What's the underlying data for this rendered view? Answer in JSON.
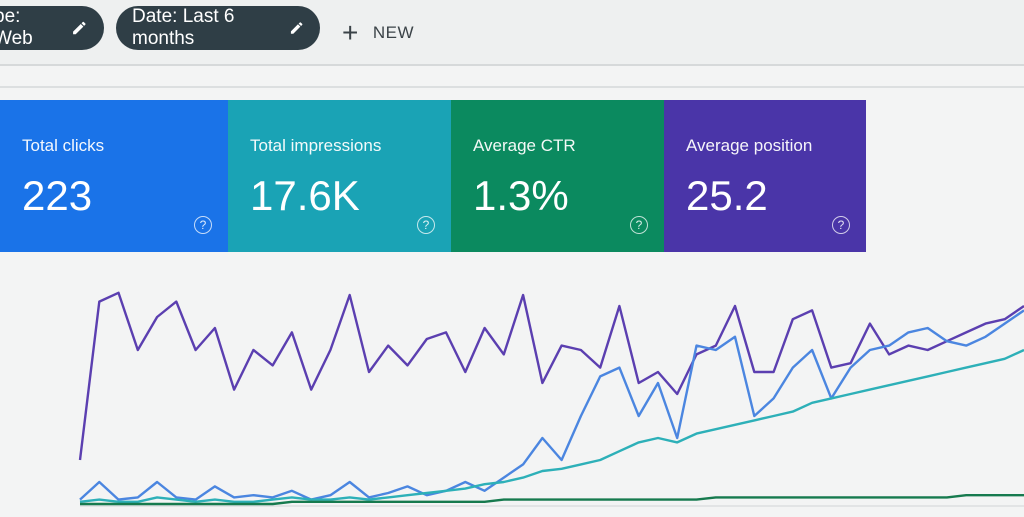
{
  "filters": {
    "type_chip": "pe: Web",
    "date_chip": "Date: Last 6 months",
    "new_label": "NEW"
  },
  "metrics": [
    {
      "label": "Total clicks",
      "value": "223",
      "color": "#1a73e8"
    },
    {
      "label": "Total impressions",
      "value": "17.6K",
      "color": "#1aa3b5"
    },
    {
      "label": "Average CTR",
      "value": "1.3%",
      "color": "#0b8a5f"
    },
    {
      "label": "Average position",
      "value": "25.2",
      "color": "#4a35a8"
    }
  ],
  "help_glyph": "?",
  "chart_data": {
    "type": "line",
    "x": [
      0,
      1,
      2,
      3,
      4,
      5,
      6,
      7,
      8,
      9,
      10,
      11,
      12,
      13,
      14,
      15,
      16,
      17,
      18,
      19,
      20,
      21,
      22,
      23,
      24,
      25,
      26,
      27,
      28,
      29,
      30,
      31,
      32,
      33,
      34,
      35,
      36,
      37,
      38,
      39,
      40,
      41,
      42,
      43,
      44,
      45,
      46,
      47,
      48,
      49
    ],
    "series": [
      {
        "color": "#5b3fb0",
        "values": [
          20,
          92,
          96,
          70,
          85,
          92,
          70,
          80,
          52,
          70,
          63,
          78,
          52,
          70,
          95,
          60,
          72,
          63,
          75,
          78,
          60,
          80,
          68,
          95,
          55,
          72,
          70,
          62,
          90,
          55,
          60,
          50,
          68,
          72,
          90,
          60,
          60,
          84,
          88,
          62,
          64,
          82,
          68,
          72,
          70,
          74,
          78,
          82,
          84,
          90
        ]
      },
      {
        "color": "#4b86e0",
        "values": [
          2,
          10,
          2,
          3,
          10,
          3,
          2,
          8,
          3,
          4,
          3,
          6,
          2,
          4,
          10,
          3,
          5,
          8,
          4,
          6,
          10,
          6,
          12,
          18,
          30,
          20,
          40,
          58,
          62,
          40,
          55,
          30,
          72,
          70,
          76,
          40,
          48,
          62,
          70,
          48,
          62,
          70,
          72,
          78,
          80,
          74,
          72,
          76,
          82,
          88
        ]
      },
      {
        "color": "#2db0b8",
        "values": [
          1,
          2,
          1,
          1,
          3,
          2,
          1,
          2,
          1,
          1,
          2,
          3,
          2,
          2,
          3,
          2,
          3,
          4,
          5,
          6,
          7,
          9,
          10,
          12,
          15,
          16,
          18,
          20,
          24,
          28,
          30,
          28,
          32,
          34,
          36,
          38,
          40,
          42,
          46,
          48,
          50,
          52,
          54,
          56,
          58,
          60,
          62,
          64,
          66,
          70
        ]
      },
      {
        "color": "#167a4e",
        "values": [
          0,
          0,
          0,
          0,
          0,
          0,
          0,
          0,
          0,
          0,
          0,
          1,
          1,
          1,
          1,
          1,
          1,
          1,
          1,
          1,
          1,
          1,
          2,
          2,
          2,
          2,
          2,
          2,
          2,
          2,
          2,
          2,
          2,
          3,
          3,
          3,
          3,
          3,
          3,
          3,
          3,
          3,
          3,
          3,
          3,
          3,
          4,
          4,
          4,
          4
        ]
      }
    ],
    "ylim": [
      0,
      100
    ],
    "grid": false
  }
}
